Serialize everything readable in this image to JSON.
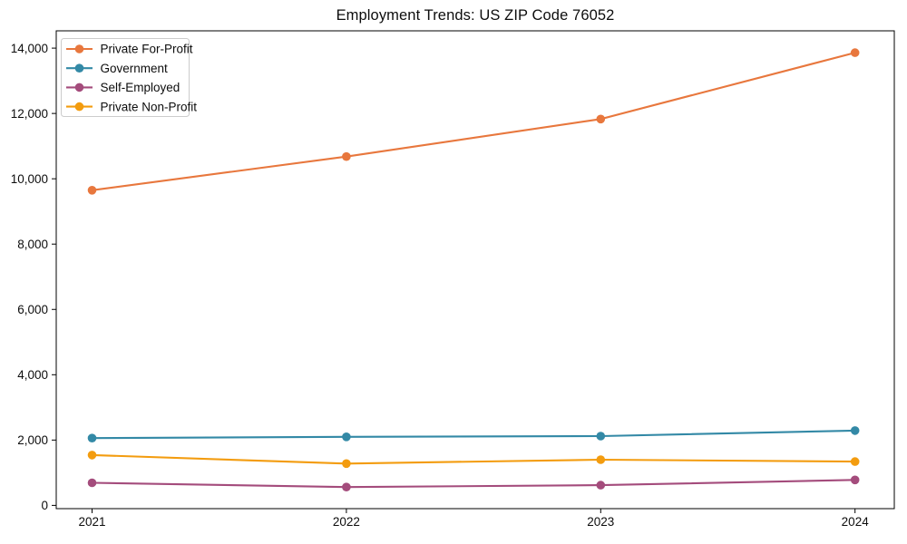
{
  "chart_data": {
    "type": "line",
    "title": "Employment Trends: US ZIP Code 76052",
    "x": [
      "2021",
      "2022",
      "2023",
      "2024"
    ],
    "series": [
      {
        "name": "Private For-Profit",
        "color": "#E8773D",
        "values": [
          9650,
          10680,
          11830,
          13860
        ]
      },
      {
        "name": "Government",
        "color": "#3389A6",
        "values": [
          2060,
          2100,
          2120,
          2290
        ]
      },
      {
        "name": "Self-Employed",
        "color": "#A44C7C",
        "values": [
          690,
          560,
          620,
          780
        ]
      },
      {
        "name": "Private Non-Profit",
        "color": "#F39C0F",
        "values": [
          1540,
          1280,
          1400,
          1340
        ]
      }
    ],
    "xlabel": "",
    "ylabel": "",
    "ylim": [
      -100,
      14530
    ],
    "yticks": [
      0,
      2000,
      4000,
      6000,
      8000,
      10000,
      12000,
      14000
    ],
    "ytick_labels": [
      "0",
      "2,000",
      "4,000",
      "6,000",
      "8,000",
      "10,000",
      "12,000",
      "14,000"
    ],
    "grid": false,
    "marker": "circle",
    "legend_position": "upper-left",
    "axis_color": "#000000",
    "legend_border_color": "#cccccc"
  }
}
